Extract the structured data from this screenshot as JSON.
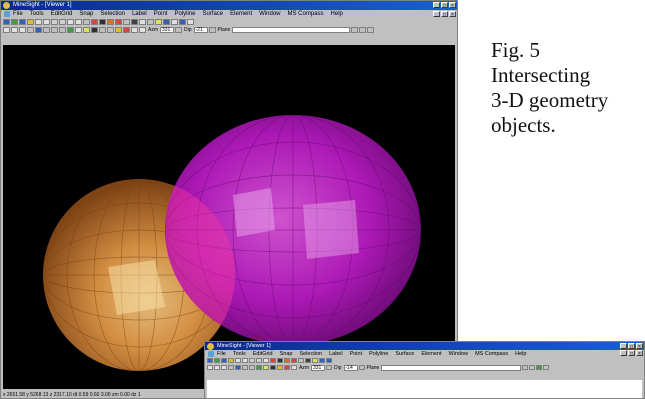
{
  "main_window": {
    "title": "MineSight - [Viewer 1]",
    "title_buttons": [
      "_",
      "□",
      "×"
    ],
    "doc_buttons": [
      "_",
      "□",
      "×"
    ],
    "menu": [
      "File",
      "Tools",
      "EditGrid",
      "Snap",
      "Selection",
      "Label",
      "Point",
      "Polyline",
      "Surface",
      "Element",
      "Window",
      "MS Compass",
      "Help"
    ],
    "azm_label": "Azm",
    "azm_value": "331",
    "dip_label": "Dip",
    "dip_value": "-21",
    "plane_label": "Plane",
    "status_text": "x 2651.58    y 5268.13    z 2317.10    dt 0.59    0.60    3.00    zm 0.00  dz 1",
    "colors": {
      "sphere_orange": "#e0883a",
      "ellipsoid_magenta": "#c81cd2",
      "viewport_bg": "#000000"
    }
  },
  "caption": {
    "lines": [
      "Fig. 5",
      "Intersecting",
      "3-D geometry",
      "objects."
    ]
  },
  "second_window": {
    "title": "MineSight - [Viewer 1]",
    "title_buttons": [
      "_",
      "□",
      "×"
    ],
    "doc_buttons": [
      "_",
      "□",
      "×"
    ],
    "menu": [
      "File",
      "Tools",
      "EditGrid",
      "Snap",
      "Selection",
      "Label",
      "Point",
      "Polyline",
      "Surface",
      "Element",
      "Window",
      "MS Compass",
      "Help"
    ],
    "azm_label": "Azm",
    "azm_value": "331",
    "dip_label": "Dip",
    "dip_value": "-14",
    "plane_label": "Plane"
  }
}
